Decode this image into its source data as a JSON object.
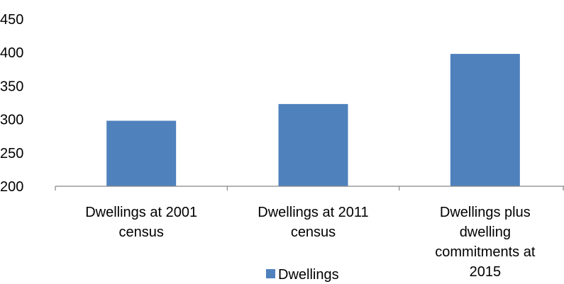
{
  "chart_data": {
    "type": "bar",
    "categories": [
      [
        "Dwellings at 2001",
        "census"
      ],
      [
        "Dwellings at 2011",
        "census"
      ],
      [
        "Dwellings plus",
        "dwelling",
        "commitments  at",
        "2015"
      ]
    ],
    "series": [
      {
        "name": "Dwellings",
        "values": [
          298,
          323,
          398
        ],
        "color": "#4F81BD"
      }
    ],
    "ylim": [
      200,
      450
    ],
    "yticks": [
      200,
      250,
      300,
      350,
      400,
      450
    ],
    "grid": false,
    "legend_position": "bottom"
  }
}
